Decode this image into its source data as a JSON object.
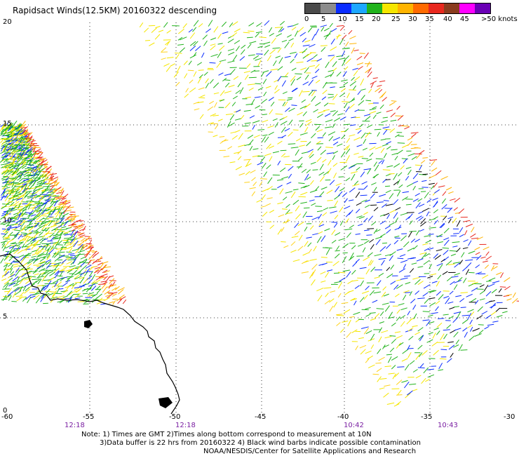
{
  "title": "Rapidsact Winds(12.5KM) 20160322 descending",
  "legend": {
    "colors": [
      "#4a4a4a",
      "#8c8c8c",
      "#0a2cff",
      "#1da7ff",
      "#21b31c",
      "#f5e600",
      "#ffb400",
      "#ff6a00",
      "#e8281e",
      "#8a3b1e",
      "#ff00ff",
      "#6a00b5"
    ],
    "labels": [
      "0",
      "5",
      "10",
      "15",
      "20",
      "25",
      "30",
      "35",
      "40",
      "45",
      ">50 knots"
    ]
  },
  "axes": {
    "y_ticks": [
      "20",
      "15",
      "10",
      "5",
      "0"
    ],
    "x_ticks": [
      "-60",
      "-55",
      "-50",
      "-45",
      "-40",
      "-35",
      "-30"
    ]
  },
  "times": [
    "12:18",
    "12:18",
    "10:42",
    "10:43"
  ],
  "notes": [
    "Note: 1) Times are GMT 2)Times along bottom correspond to measurement at 10N",
    "3)Data buffer is 22 hrs from 20160322 4) Black wind barbs indicate possible contamination",
    "NOAA/NESDIS/Center for Satellite Applications and Research"
  ]
}
